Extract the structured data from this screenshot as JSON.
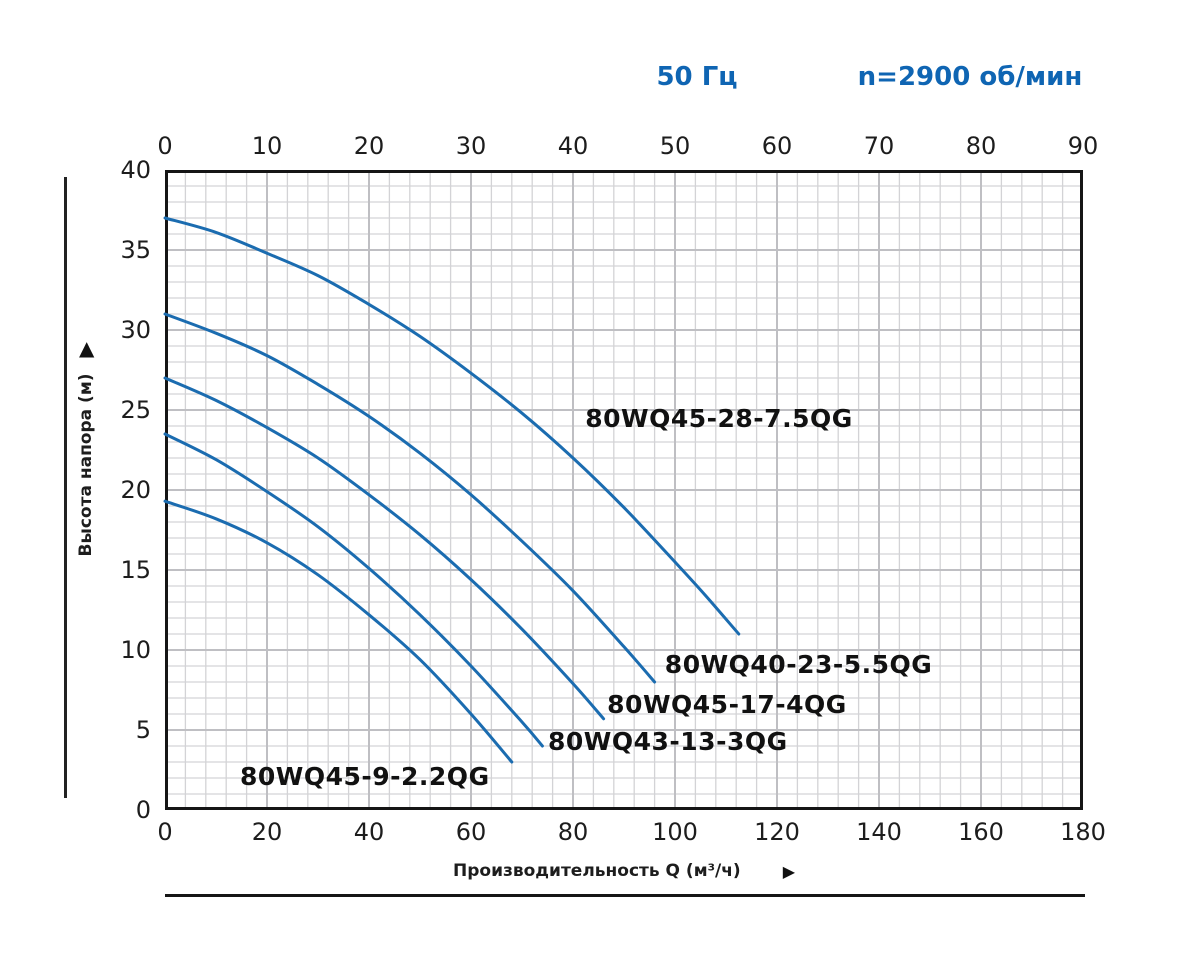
{
  "header": {
    "frequency": "50 Гц",
    "speed": "n=2900 об/мин",
    "color": "#0f65b3"
  },
  "icons": {
    "y_arrow_up": "▲",
    "x_arrow_right": "▶"
  },
  "chart_data": {
    "type": "line",
    "x_axis_top": {
      "ticks": [
        0,
        10,
        20,
        30,
        40,
        50,
        60,
        70,
        80,
        90
      ],
      "range": [
        0,
        90
      ]
    },
    "x_axis_bottom": {
      "label": "Производительность Q (м³/ч)",
      "ticks": [
        0,
        20,
        40,
        60,
        80,
        100,
        120,
        140,
        160,
        180
      ],
      "range": [
        0,
        180
      ]
    },
    "y_axis": {
      "label": "Высота напора (м)",
      "ticks": [
        40,
        35,
        30,
        25,
        20,
        15,
        10,
        5,
        0
      ],
      "range": [
        0,
        40
      ]
    },
    "grid": {
      "on": true,
      "minor_x_step": 4,
      "major_x_step": 20,
      "minor_y_step": 1,
      "major_y_step": 5
    },
    "colors": {
      "curve": "#1b6cb0",
      "grid_minor": "#d3d3d6",
      "grid_major": "#bfbfc3",
      "axis_border": "#151515",
      "text": "#1d1d1d"
    },
    "series": [
      {
        "name": "80WQ45-28-7.5QG",
        "points": [
          [
            0,
            37
          ],
          [
            10,
            36.1
          ],
          [
            20,
            34.8
          ],
          [
            30,
            33.4
          ],
          [
            40,
            31.6
          ],
          [
            50,
            29.6
          ],
          [
            60,
            27.3
          ],
          [
            70,
            24.8
          ],
          [
            80,
            22.0
          ],
          [
            90,
            18.9
          ],
          [
            100,
            15.5
          ],
          [
            106,
            13.4
          ],
          [
            112.5,
            11.0
          ]
        ],
        "label_pos": [
          82.4,
          25.4
        ]
      },
      {
        "name": "80WQ40-23-5.5QG",
        "points": [
          [
            0,
            31
          ],
          [
            10,
            29.8
          ],
          [
            20,
            28.4
          ],
          [
            30,
            26.6
          ],
          [
            40,
            24.6
          ],
          [
            50,
            22.3
          ],
          [
            60,
            19.7
          ],
          [
            70,
            16.8
          ],
          [
            80,
            13.7
          ],
          [
            90,
            10.2
          ],
          [
            96,
            8.0
          ]
        ],
        "label_pos": [
          98.0,
          10.0
        ]
      },
      {
        "name": "80WQ45-17-4QG",
        "points": [
          [
            0,
            27
          ],
          [
            10,
            25.6
          ],
          [
            20,
            23.9
          ],
          [
            30,
            22.0
          ],
          [
            40,
            19.7
          ],
          [
            50,
            17.2
          ],
          [
            60,
            14.4
          ],
          [
            70,
            11.3
          ],
          [
            80,
            7.9
          ],
          [
            86,
            5.7
          ]
        ],
        "label_pos": [
          86.7,
          7.5
        ]
      },
      {
        "name": "80WQ43-13-3QG",
        "points": [
          [
            0,
            23.5
          ],
          [
            10,
            21.9
          ],
          [
            20,
            19.9
          ],
          [
            30,
            17.7
          ],
          [
            40,
            15.1
          ],
          [
            50,
            12.2
          ],
          [
            60,
            9.0
          ],
          [
            70,
            5.5
          ],
          [
            74,
            4.0
          ]
        ],
        "label_pos": [
          75.1,
          5.2
        ]
      },
      {
        "name": "80WQ45-9-2.2QG",
        "points": [
          [
            0,
            19.3
          ],
          [
            10,
            18.2
          ],
          [
            20,
            16.7
          ],
          [
            30,
            14.7
          ],
          [
            40,
            12.2
          ],
          [
            50,
            9.4
          ],
          [
            60,
            6.0
          ],
          [
            68,
            3.0
          ]
        ],
        "label_pos": [
          14.7,
          3.0
        ]
      }
    ]
  }
}
